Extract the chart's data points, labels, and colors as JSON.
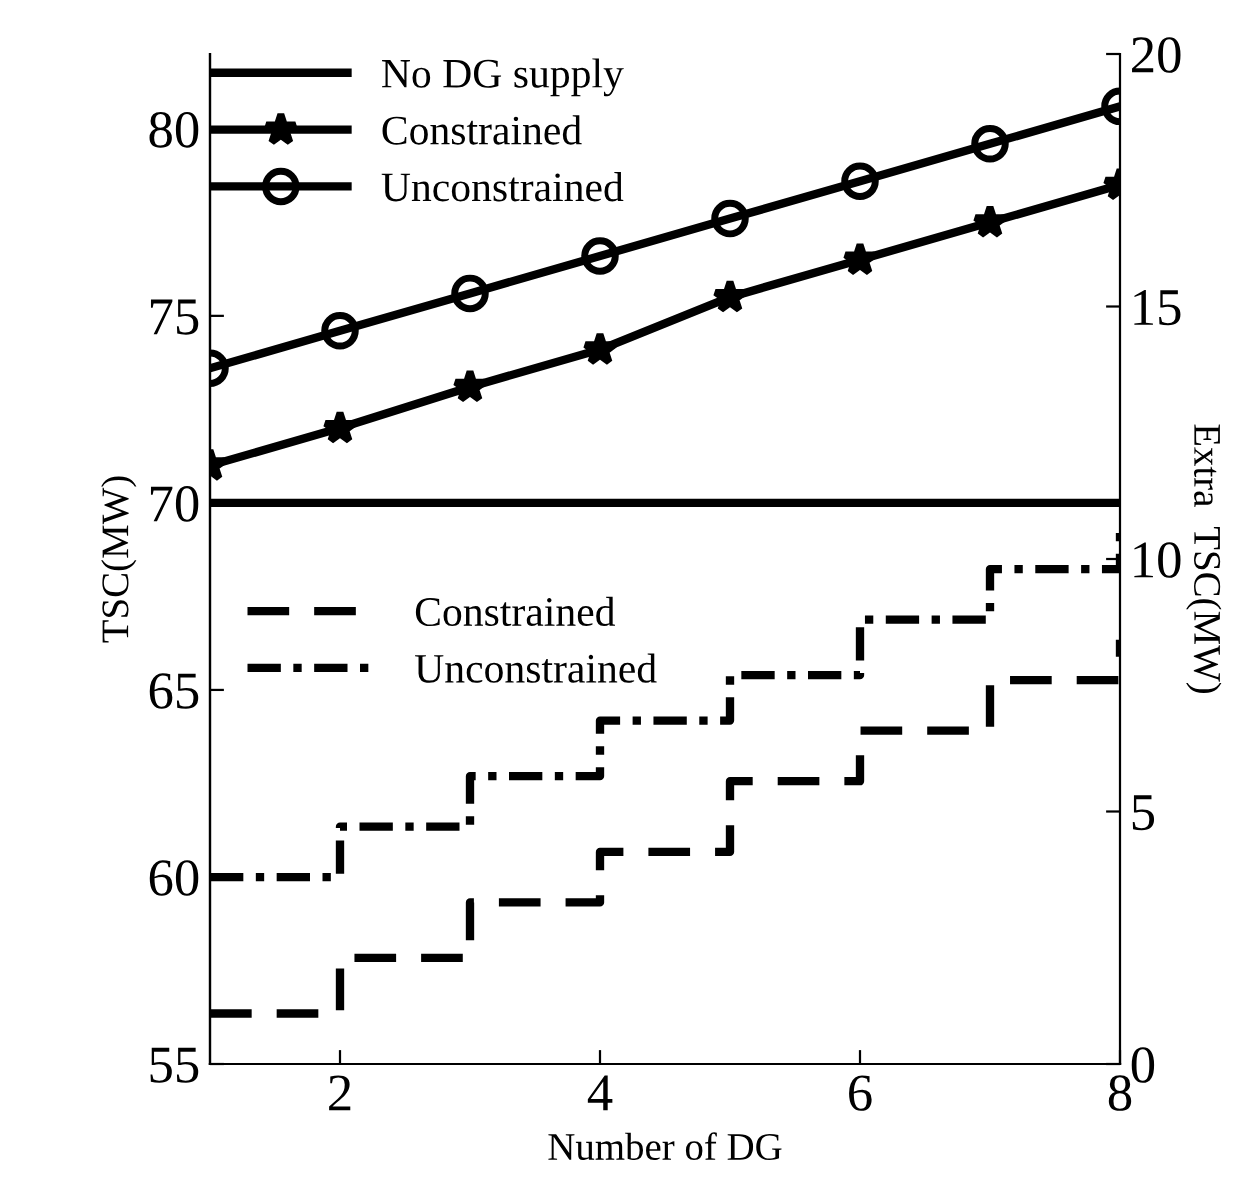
{
  "chart_data": {
    "type": "line",
    "xlabel": "Number of DG",
    "ylabel": "TSC(MW)",
    "y2label": "Extra  TSC(MW)",
    "x": [
      1,
      2,
      3,
      4,
      5,
      6,
      7,
      8
    ],
    "series": [
      {
        "name": "No DG supply",
        "color": "#000000",
        "values": [
          70,
          70,
          70,
          70,
          70,
          70,
          70,
          70
        ],
        "marker": "none",
        "line_style": "solid"
      },
      {
        "name": "Constrained",
        "color": "#000000",
        "values": [
          71.0,
          72.0,
          73.1,
          74.1,
          75.5,
          76.5,
          77.5,
          78.5
        ],
        "marker": "star",
        "line_style": "solid"
      },
      {
        "name": "Unconstrained",
        "color": "#000000",
        "values": [
          73.6,
          74.6,
          75.6,
          76.6,
          77.6,
          78.6,
          79.6,
          80.6
        ],
        "marker": "circle",
        "line_style": "solid"
      },
      {
        "name": "Constrained",
        "type": "step",
        "axis": "y2",
        "color": "#000000",
        "values": [
          1.0,
          2.1,
          3.2,
          4.2,
          5.6,
          6.6,
          7.6,
          8.4
        ],
        "marker": "none",
        "line_style": "dashed"
      },
      {
        "name": "Unconstrained",
        "type": "step",
        "axis": "y2",
        "color": "#000000",
        "values": [
          3.7,
          4.7,
          5.7,
          6.8,
          7.7,
          8.8,
          9.8,
          10.6
        ],
        "marker": "none",
        "line_style": "dashdot"
      }
    ],
    "xlim": [
      1,
      8
    ],
    "xticks": [
      2,
      4,
      6,
      8
    ],
    "ylim": [
      55,
      82
    ],
    "yticks": [
      55,
      60,
      65,
      70,
      75,
      80
    ],
    "y2lim": [
      0,
      20
    ],
    "y2ticks": [
      0,
      5,
      10,
      15,
      20
    ],
    "grid": false,
    "legend": "top left"
  }
}
